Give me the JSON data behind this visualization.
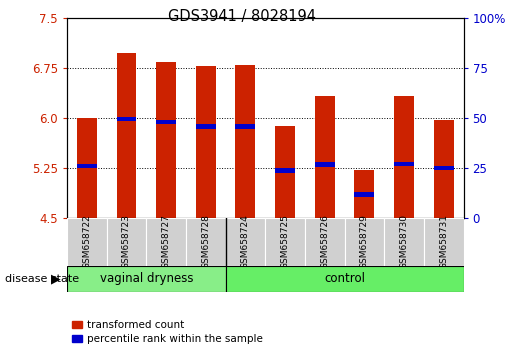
{
  "title": "GDS3941 / 8028194",
  "samples": [
    "GSM658722",
    "GSM658723",
    "GSM658727",
    "GSM658728",
    "GSM658724",
    "GSM658725",
    "GSM658726",
    "GSM658729",
    "GSM658730",
    "GSM658731"
  ],
  "bar_tops": [
    6.0,
    6.97,
    6.84,
    6.78,
    6.79,
    5.88,
    6.32,
    5.22,
    6.33,
    5.97
  ],
  "bar_bottom": 4.5,
  "blue_markers": [
    5.28,
    5.98,
    5.94,
    5.87,
    5.87,
    5.21,
    5.3,
    4.85,
    5.31,
    5.25
  ],
  "ymin": 4.5,
  "ymax": 7.5,
  "yticks_left": [
    4.5,
    5.25,
    6.0,
    6.75,
    7.5
  ],
  "yticks_right_vals": [
    0,
    25,
    50,
    75,
    100
  ],
  "yticks_right_labels": [
    "0",
    "25",
    "50",
    "75",
    "100%"
  ],
  "bar_color": "#cc2200",
  "marker_color": "#0000cc",
  "ax_bg": "#ffffff",
  "vaginal_dryness_count": 4,
  "control_count": 6,
  "bar_width": 0.5,
  "group_color_vd": "#88ee88",
  "group_color_ctrl": "#66ee66"
}
